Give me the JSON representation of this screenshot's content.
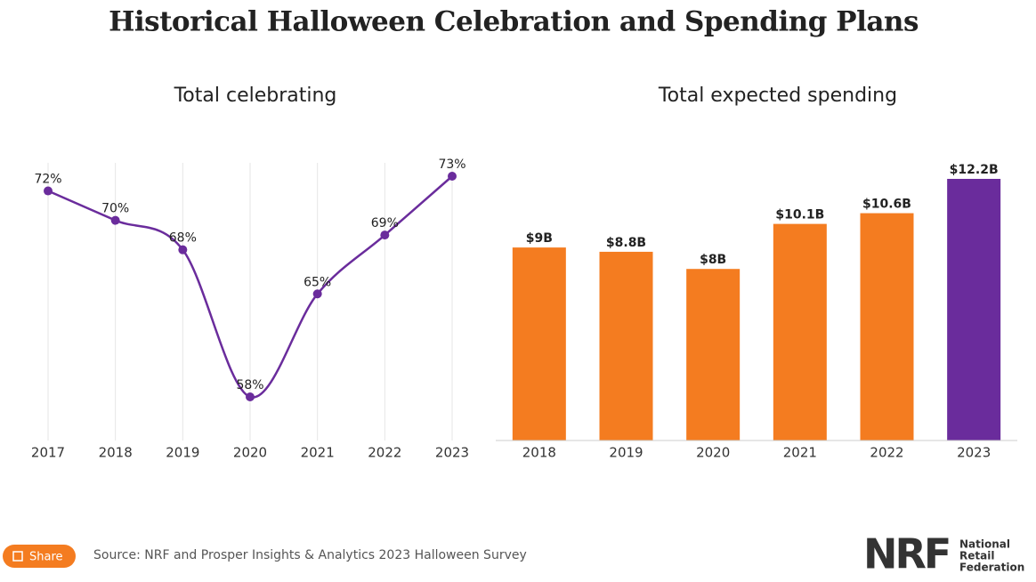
{
  "title": "Historical Halloween Celebration and Spending Plans",
  "chart_data": [
    {
      "type": "line",
      "title": "Total celebrating",
      "categories": [
        "2017",
        "2018",
        "2019",
        "2020",
        "2021",
        "2022",
        "2023"
      ],
      "values": [
        72,
        70,
        68,
        58,
        65,
        69,
        73
      ],
      "value_labels": [
        "72%",
        "70%",
        "68%",
        "58%",
        "65%",
        "69%",
        "73%"
      ],
      "color": "#6a2c9c",
      "grid": true
    },
    {
      "type": "bar",
      "title": "Total expected spending",
      "categories": [
        "2018",
        "2019",
        "2020",
        "2021",
        "2022",
        "2023"
      ],
      "values": [
        9,
        8.8,
        8,
        10.1,
        10.6,
        12.2
      ],
      "value_labels": [
        "$9B",
        "$8.8B",
        "$8B",
        "$10.1B",
        "$10.6B",
        "$12.2B"
      ],
      "colors": [
        "#f47c20",
        "#f47c20",
        "#f47c20",
        "#f47c20",
        "#f47c20",
        "#6a2c9c"
      ]
    }
  ],
  "source": "Source: NRF and Prosper Insights & Analytics 2023 Halloween Survey",
  "share": "Share",
  "logo": {
    "mark": "NRF",
    "lines": [
      "National",
      "Retail",
      "Federation"
    ]
  }
}
